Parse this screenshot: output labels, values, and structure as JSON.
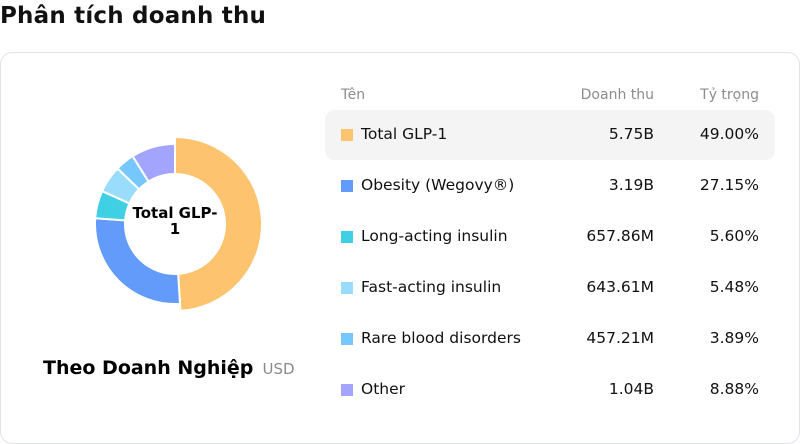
{
  "page": {
    "title": "Phân tích doanh thu"
  },
  "chart": {
    "center_label": "Total GLP-\n1",
    "caption_title": "Theo Doanh Nghiệp",
    "caption_unit": "USD"
  },
  "table": {
    "headers": {
      "name": "Tên",
      "revenue": "Doanh thu",
      "share": "Tỷ trọng"
    },
    "rows": [
      {
        "name": "Total GLP-1",
        "revenue": "5.75B",
        "share": "49.00%",
        "color": "#fdc36f",
        "selected": true
      },
      {
        "name": "Obesity (Wegovy®)",
        "revenue": "3.19B",
        "share": "27.15%",
        "color": "#629bfa",
        "selected": false
      },
      {
        "name": "Long-acting insulin",
        "revenue": "657.86M",
        "share": "5.60%",
        "color": "#40d0e3",
        "selected": false
      },
      {
        "name": "Fast-acting insulin",
        "revenue": "643.61M",
        "share": "5.48%",
        "color": "#99dcfb",
        "selected": false
      },
      {
        "name": "Rare blood disorders",
        "revenue": "457.21M",
        "share": "3.89%",
        "color": "#76c7fb",
        "selected": false
      },
      {
        "name": "Other",
        "revenue": "1.04B",
        "share": "8.88%",
        "color": "#a3a4fd",
        "selected": false
      }
    ]
  },
  "chart_data": {
    "type": "pie",
    "variant": "donut",
    "title": "Theo Doanh Nghiệp",
    "unit": "USD",
    "center_label": "Total GLP-1",
    "categories": [
      "Total GLP-1",
      "Obesity (Wegovy®)",
      "Long-acting insulin",
      "Fast-acting insulin",
      "Rare blood disorders",
      "Other"
    ],
    "values": [
      5750000000.0,
      3190000000.0,
      657860000.0,
      643610000.0,
      457210000.0,
      1040000000.0
    ],
    "value_labels": [
      "5.75B",
      "3.19B",
      "657.86M",
      "643.61M",
      "457.21M",
      "1.04B"
    ],
    "percentages": [
      49.0,
      27.15,
      5.6,
      5.48,
      3.89,
      8.88
    ],
    "colors": [
      "#fdc36f",
      "#629bfa",
      "#40d0e3",
      "#99dcfb",
      "#76c7fb",
      "#a3a4fd"
    ],
    "highlighted": "Total GLP-1",
    "legend_position": "right (table)"
  }
}
